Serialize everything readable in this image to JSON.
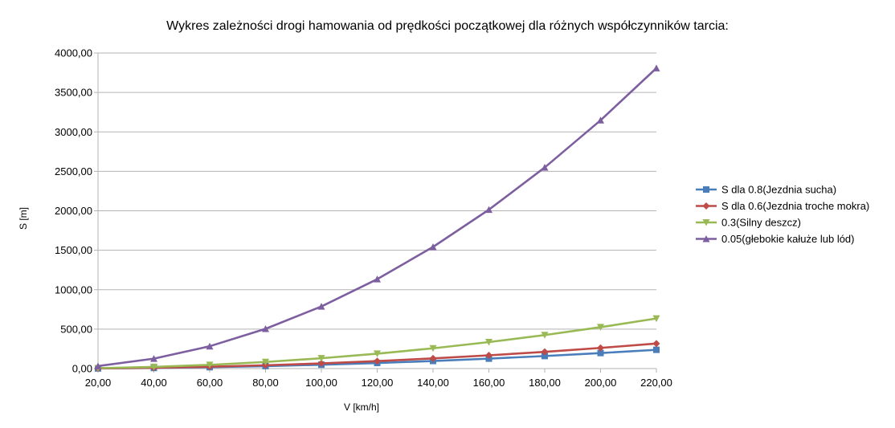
{
  "chart_data": {
    "type": "line",
    "title": "Wykres zależności drogi hamowania od prędkości początkowej dla różnych współczynników tarcia:",
    "xlabel": "V [km/h]",
    "ylabel": "S [m]",
    "x": [
      20,
      40,
      60,
      80,
      100,
      120,
      140,
      160,
      180,
      200,
      220
    ],
    "x_tick_labels": [
      "20,00",
      "40,00",
      "60,00",
      "80,00",
      "100,00",
      "120,00",
      "140,00",
      "160,00",
      "180,00",
      "200,00",
      "220,00"
    ],
    "xlim": [
      20,
      220
    ],
    "ylim": [
      0,
      4000
    ],
    "y_ticks": [
      0,
      500,
      1000,
      1500,
      2000,
      2500,
      3000,
      3500,
      4000
    ],
    "y_tick_labels": [
      "0,00",
      "500,00",
      "1000,00",
      "1500,00",
      "2000,00",
      "2500,00",
      "3000,00",
      "3500,00",
      "4000,00"
    ],
    "grid": "horizontal",
    "legend_position": "right",
    "series": [
      {
        "name": "S dla 0.8(Jezdnia sucha)",
        "color": "#4a7ebb",
        "marker": "square",
        "values": [
          1.97,
          7.87,
          17.7,
          31.5,
          49.2,
          70.8,
          96.4,
          126,
          159,
          197,
          238
        ]
      },
      {
        "name": "S dla 0.6(Jezdnia troche mokra)",
        "color": "#be4b48",
        "marker": "diamond",
        "values": [
          2.62,
          10.5,
          23.6,
          42,
          65.6,
          94.4,
          129,
          168,
          212,
          262,
          317
        ]
      },
      {
        "name": "0.3(Silny deszcz)",
        "color": "#98b954",
        "marker": "triangle-down",
        "values": [
          5.25,
          21,
          47.2,
          84,
          131,
          189,
          257,
          336,
          425,
          525,
          635
        ]
      },
      {
        "name": "0.05(głebokie kałuże lub lód)",
        "color": "#7d5fa0",
        "marker": "triangle-up",
        "values": [
          31.5,
          126,
          283,
          504,
          787,
          1133,
          1542,
          2014,
          2549,
          3147,
          3808
        ]
      }
    ]
  }
}
